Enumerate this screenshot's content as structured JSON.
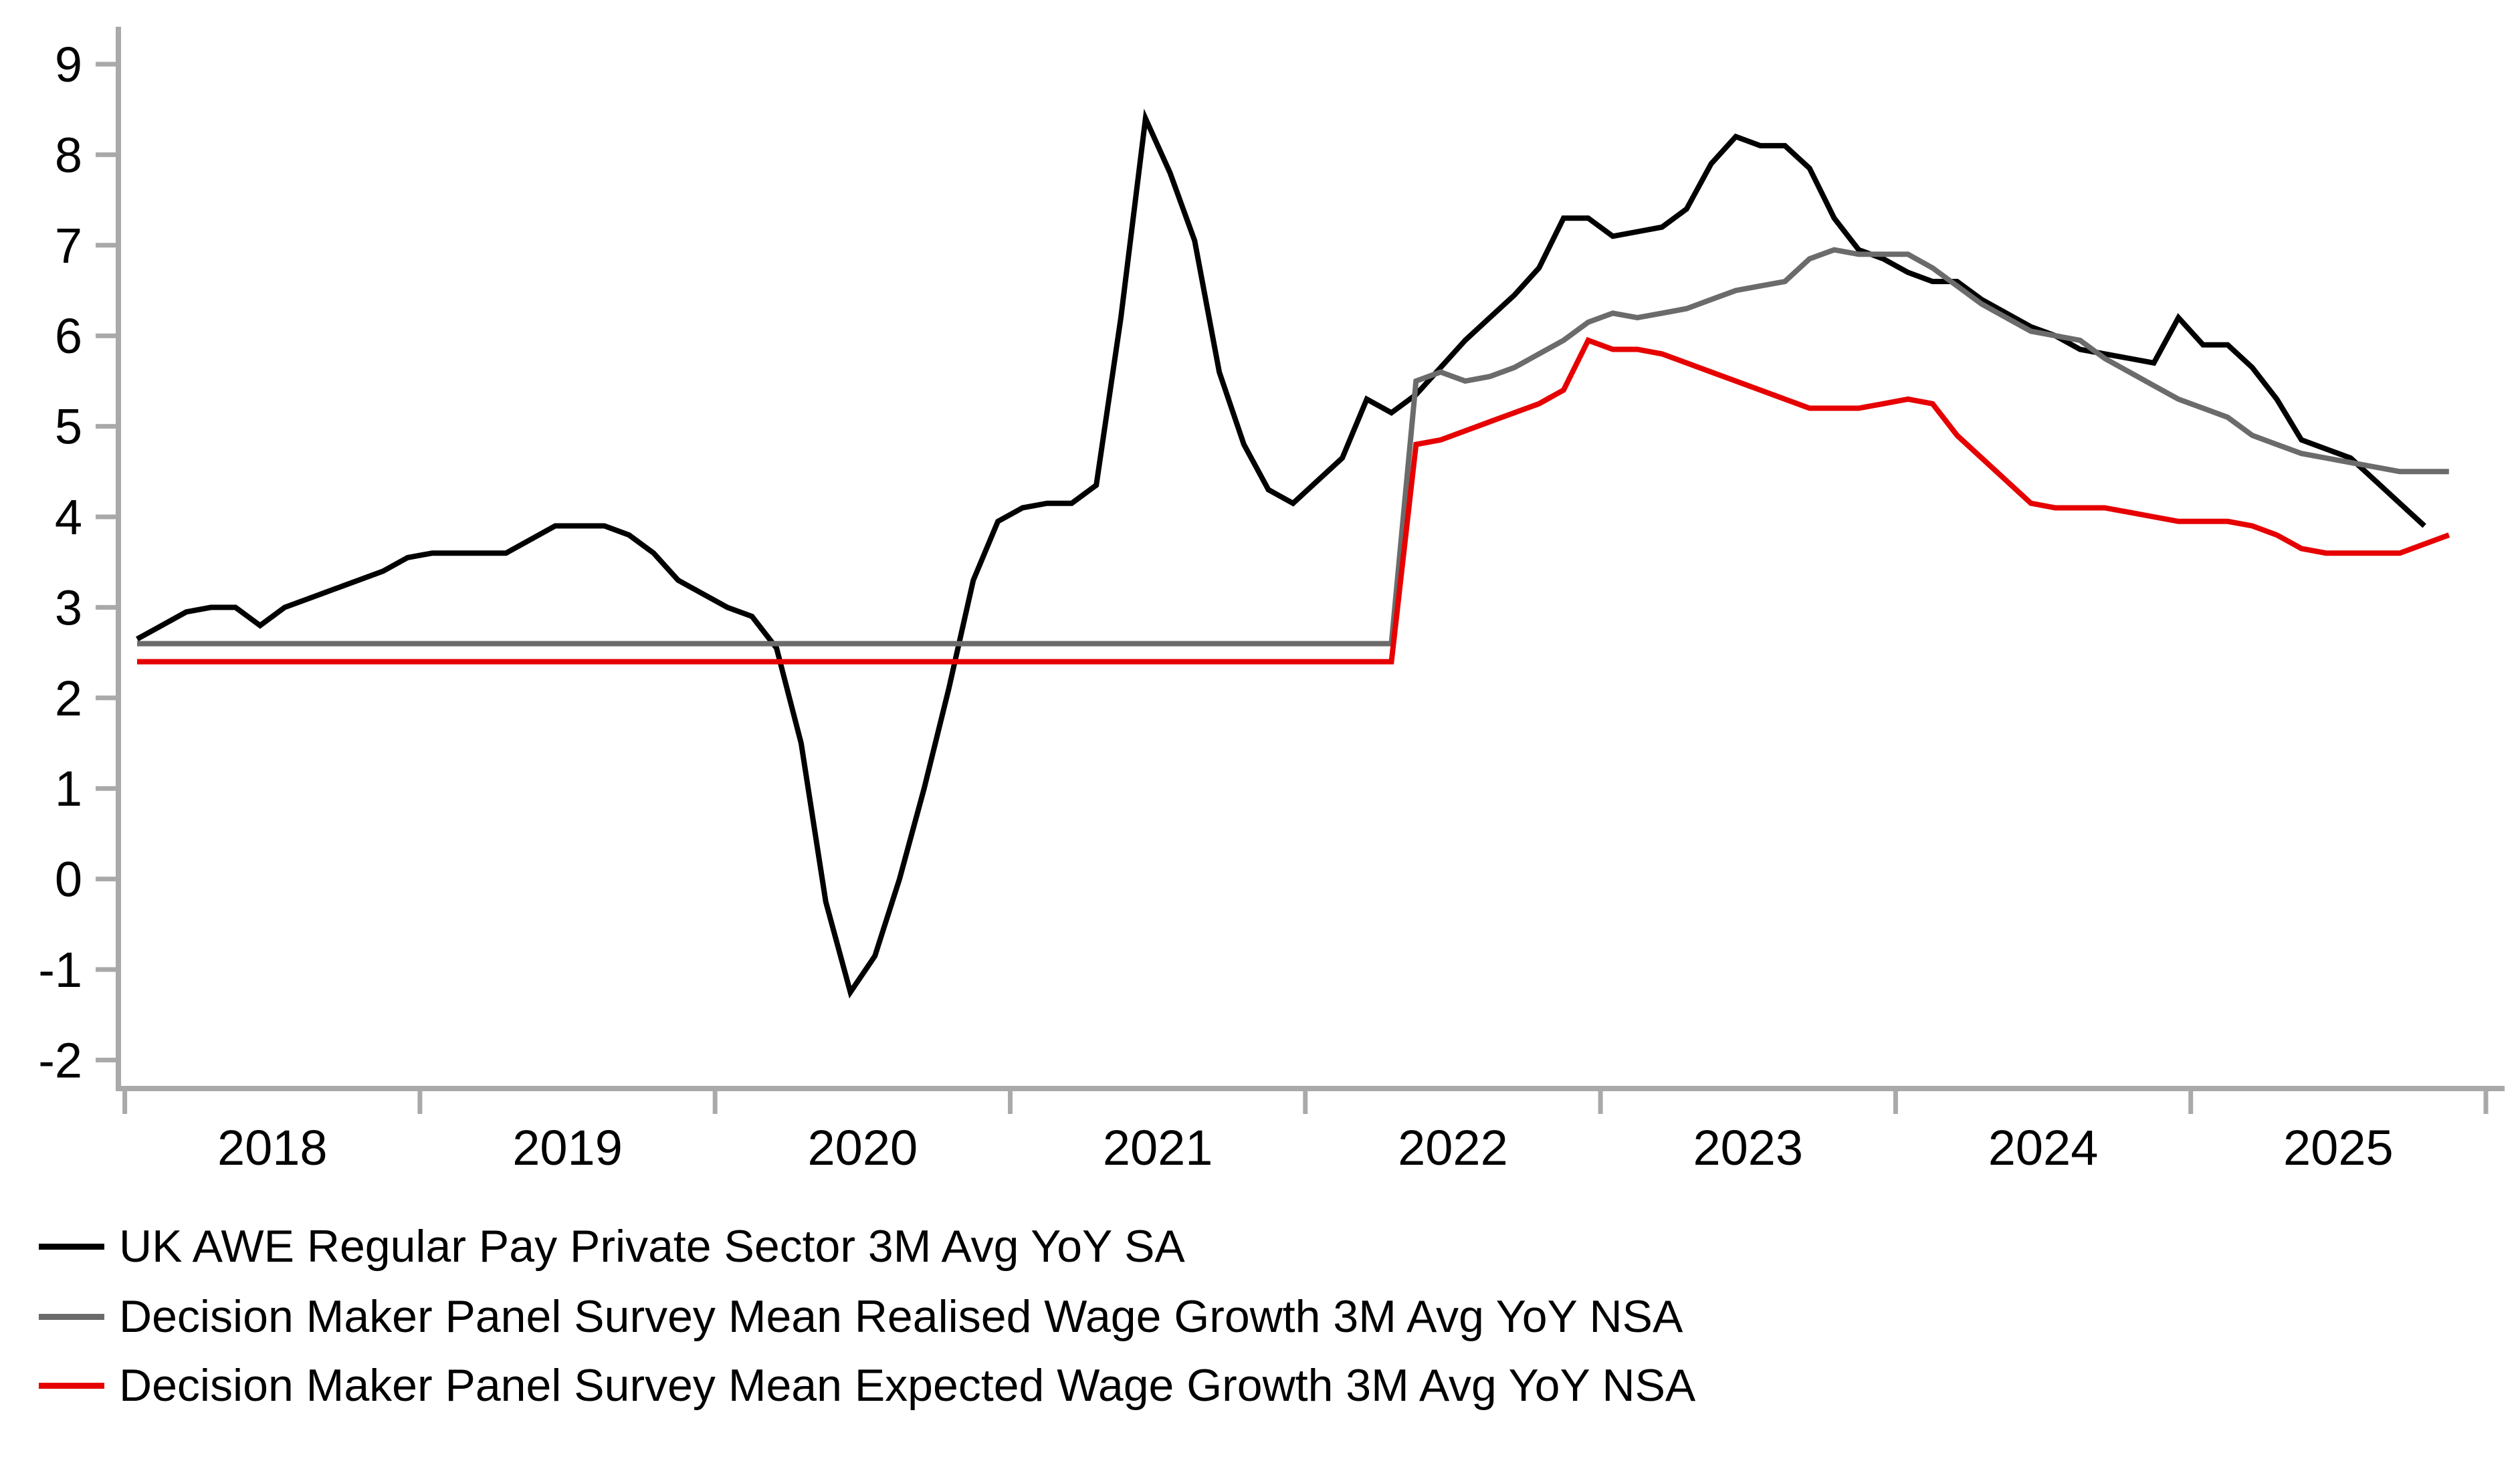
{
  "chart_data": {
    "type": "line",
    "title": "",
    "y_axis": {
      "min": -2,
      "max": 9,
      "step": 1,
      "ticks": [
        9,
        8,
        7,
        6,
        5,
        4,
        3,
        2,
        1,
        0,
        -1,
        -2
      ],
      "grid": false
    },
    "x_axis": {
      "tick_boundary_years": [
        2018,
        2019,
        2020,
        2021,
        2022,
        2023,
        2024,
        2025,
        2026
      ],
      "year_labels": [
        "2018",
        "2019",
        "2020",
        "2021",
        "2022",
        "2023",
        "2024",
        "2025"
      ],
      "labels_centered_between_ticks": true
    },
    "legend_position": "bottom-left",
    "colors": {
      "axis": "#a9a9a9",
      "black_series": "#000000",
      "gray_series": "#6b6b6b",
      "red_series": "#e60000"
    },
    "series": [
      {
        "name": "UK AWE Regular Pay Private Sector 3M Avg YoY SA",
        "color": "#000000",
        "start": "2018-01",
        "values": [
          2.65,
          2.8,
          2.95,
          3.0,
          3.0,
          2.8,
          3.0,
          3.1,
          3.2,
          3.3,
          3.4,
          3.55,
          3.6,
          3.6,
          3.6,
          3.6,
          3.75,
          3.9,
          3.9,
          3.9,
          3.8,
          3.6,
          3.3,
          3.15,
          3.0,
          2.9,
          2.55,
          1.5,
          -0.25,
          -1.25,
          -0.85,
          0.0,
          1.0,
          2.1,
          3.3,
          3.95,
          4.1,
          4.15,
          4.15,
          4.35,
          6.2,
          8.4,
          7.8,
          7.05,
          5.6,
          4.8,
          4.3,
          4.15,
          4.4,
          4.65,
          5.3,
          5.15,
          5.35,
          5.65,
          5.95,
          6.2,
          6.45,
          6.75,
          7.3,
          7.3,
          7.1,
          7.15,
          7.2,
          7.4,
          7.9,
          8.2,
          8.1,
          8.1,
          7.85,
          7.3,
          6.95,
          6.85,
          6.7,
          6.6,
          6.6,
          6.4,
          6.25,
          6.1,
          6.0,
          5.85,
          5.8,
          5.75,
          5.7,
          6.2,
          5.9,
          5.9,
          5.65,
          5.3,
          4.85,
          4.75,
          4.65,
          4.4,
          4.15,
          3.9
        ]
      },
      {
        "name": "Decision Maker Panel Survey Mean Realised Wage Growth 3M Avg YoY NSA",
        "color": "#6b6b6b",
        "start": "2018-01",
        "values": [
          2.6,
          2.6,
          2.6,
          2.6,
          2.6,
          2.6,
          2.6,
          2.6,
          2.6,
          2.6,
          2.6,
          2.6,
          2.6,
          2.6,
          2.6,
          2.6,
          2.6,
          2.6,
          2.6,
          2.6,
          2.6,
          2.6,
          2.6,
          2.6,
          2.6,
          2.6,
          2.6,
          2.6,
          2.6,
          2.6,
          2.6,
          2.6,
          2.6,
          2.6,
          2.6,
          2.6,
          2.6,
          2.6,
          2.6,
          2.6,
          2.6,
          2.6,
          2.6,
          2.6,
          2.6,
          2.6,
          2.6,
          2.6,
          2.6,
          2.6,
          2.6,
          2.6,
          5.5,
          5.6,
          5.5,
          5.55,
          5.65,
          5.8,
          5.95,
          6.15,
          6.25,
          6.2,
          6.25,
          6.3,
          6.4,
          6.5,
          6.55,
          6.6,
          6.85,
          6.95,
          6.9,
          6.9,
          6.9,
          6.75,
          6.55,
          6.35,
          6.2,
          6.05,
          6.0,
          5.95,
          5.75,
          5.6,
          5.45,
          5.3,
          5.2,
          5.1,
          4.9,
          4.8,
          4.7,
          4.65,
          4.6,
          4.55,
          4.5,
          4.5,
          4.5
        ]
      },
      {
        "name": "Decision Maker Panel Survey Mean Expected Wage Growth 3M Avg YoY NSA",
        "color": "#e60000",
        "start": "2018-01",
        "values": [
          2.4,
          2.4,
          2.4,
          2.4,
          2.4,
          2.4,
          2.4,
          2.4,
          2.4,
          2.4,
          2.4,
          2.4,
          2.4,
          2.4,
          2.4,
          2.4,
          2.4,
          2.4,
          2.4,
          2.4,
          2.4,
          2.4,
          2.4,
          2.4,
          2.4,
          2.4,
          2.4,
          2.4,
          2.4,
          2.4,
          2.4,
          2.4,
          2.4,
          2.4,
          2.4,
          2.4,
          2.4,
          2.4,
          2.4,
          2.4,
          2.4,
          2.4,
          2.4,
          2.4,
          2.4,
          2.4,
          2.4,
          2.4,
          2.4,
          2.4,
          2.4,
          2.4,
          4.8,
          4.85,
          4.95,
          5.05,
          5.15,
          5.25,
          5.4,
          5.95,
          5.85,
          5.85,
          5.8,
          5.7,
          5.6,
          5.5,
          5.4,
          5.3,
          5.2,
          5.2,
          5.2,
          5.25,
          5.3,
          5.25,
          4.9,
          4.65,
          4.4,
          4.15,
          4.1,
          4.1,
          4.1,
          4.05,
          4.0,
          3.95,
          3.95,
          3.95,
          3.9,
          3.8,
          3.65,
          3.6,
          3.6,
          3.6,
          3.6,
          3.7,
          3.8
        ]
      }
    ]
  }
}
